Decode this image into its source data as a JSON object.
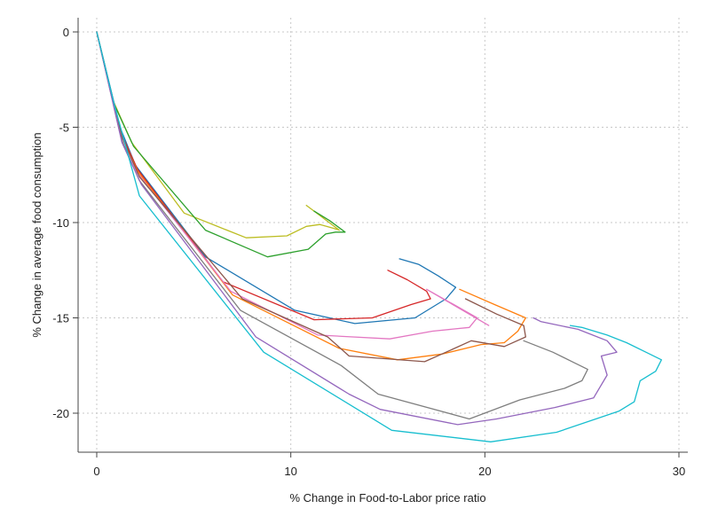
{
  "chart_data": {
    "type": "line",
    "title": "",
    "xlabel": "% Change in Food-to-Labor price ratio",
    "ylabel": "% Change in average food consumption",
    "xlim": [
      0,
      30
    ],
    "ylim": [
      -22,
      0
    ],
    "xticks": [
      0,
      10,
      20,
      30
    ],
    "yticks": [
      0,
      -5,
      -10,
      -15,
      -20
    ],
    "xtick_labels": [
      "0",
      "10",
      "20",
      "30"
    ],
    "ytick_labels": [
      "0",
      "-5",
      "-10",
      "-15",
      "-20"
    ],
    "grid": true,
    "legend": "none",
    "series": [
      {
        "color": "#bcbd22",
        "points": [
          [
            0,
            0
          ],
          [
            0.8,
            -3.5
          ],
          [
            1.8,
            -5.8
          ],
          [
            4.5,
            -9.5
          ],
          [
            7.7,
            -10.8
          ],
          [
            9.8,
            -10.7
          ],
          [
            10.8,
            -10.2
          ],
          [
            11.5,
            -10.1
          ],
          [
            12.2,
            -10.3
          ],
          [
            12.5,
            -10.4
          ],
          [
            11.2,
            -9.4
          ],
          [
            10.8,
            -9.1
          ]
        ]
      },
      {
        "color": "#2ca02c",
        "points": [
          [
            0,
            0
          ],
          [
            0.9,
            -3.8
          ],
          [
            1.9,
            -6.0
          ],
          [
            5.6,
            -10.4
          ],
          [
            8.8,
            -11.8
          ],
          [
            10.9,
            -11.4
          ],
          [
            11.8,
            -10.6
          ],
          [
            12.3,
            -10.5
          ],
          [
            12.8,
            -10.5
          ],
          [
            12.0,
            -9.9
          ],
          [
            11.2,
            -9.4
          ]
        ]
      },
      {
        "color": "#1f77b4",
        "points": [
          [
            0,
            0
          ],
          [
            1.2,
            -5.0
          ],
          [
            2.0,
            -7.0
          ],
          [
            5.6,
            -11.8
          ],
          [
            10.2,
            -14.6
          ],
          [
            13.3,
            -15.3
          ],
          [
            16.4,
            -15.0
          ],
          [
            18.0,
            -14.0
          ],
          [
            18.5,
            -13.4
          ],
          [
            17.6,
            -12.8
          ],
          [
            16.6,
            -12.2
          ],
          [
            15.6,
            -11.9
          ]
        ]
      },
      {
        "color": "#d62728",
        "points": [
          [
            0,
            0
          ],
          [
            1.2,
            -5.2
          ],
          [
            2.1,
            -7.2
          ],
          [
            6.5,
            -13.1
          ],
          [
            11.2,
            -15.1
          ],
          [
            14.2,
            -15.0
          ],
          [
            16.2,
            -14.3
          ],
          [
            17.2,
            -14.0
          ],
          [
            17.0,
            -13.6
          ],
          [
            16.0,
            -13.0
          ],
          [
            15.0,
            -12.5
          ]
        ]
      },
      {
        "color": "#ff7f0e",
        "points": [
          [
            0,
            0
          ],
          [
            1.2,
            -5.3
          ],
          [
            2.1,
            -7.3
          ],
          [
            7.0,
            -13.8
          ],
          [
            12.5,
            -16.6
          ],
          [
            15.5,
            -17.2
          ],
          [
            17.8,
            -16.9
          ],
          [
            19.8,
            -16.4
          ],
          [
            21.0,
            -16.3
          ],
          [
            21.7,
            -15.7
          ],
          [
            22.1,
            -15.0
          ],
          [
            20.5,
            -14.3
          ],
          [
            18.7,
            -13.5
          ]
        ]
      },
      {
        "color": "#e377c2",
        "points": [
          [
            0,
            0
          ],
          [
            1.2,
            -5.3
          ],
          [
            2.1,
            -7.4
          ],
          [
            6.9,
            -13.6
          ],
          [
            11.4,
            -15.9
          ],
          [
            15.1,
            -16.1
          ],
          [
            17.3,
            -15.7
          ],
          [
            19.2,
            -15.5
          ],
          [
            19.6,
            -15.0
          ],
          [
            18.4,
            -14.3
          ],
          [
            17.0,
            -13.5
          ],
          [
            20.2,
            -15.4
          ]
        ]
      },
      {
        "color": "#8c564b",
        "points": [
          [
            0,
            0
          ],
          [
            1.3,
            -5.5
          ],
          [
            2.2,
            -7.6
          ],
          [
            7.5,
            -14.0
          ],
          [
            11.9,
            -16.0
          ],
          [
            13.0,
            -17.0
          ],
          [
            16.9,
            -17.3
          ],
          [
            18.0,
            -16.8
          ],
          [
            19.3,
            -16.2
          ],
          [
            21.0,
            -16.5
          ],
          [
            22.1,
            -16.0
          ],
          [
            22.0,
            -15.4
          ],
          [
            20.6,
            -14.8
          ],
          [
            19.0,
            -14.0
          ]
        ]
      },
      {
        "color": "#7f7f7f",
        "points": [
          [
            0,
            0
          ],
          [
            1.3,
            -5.7
          ],
          [
            2.2,
            -7.8
          ],
          [
            7.4,
            -14.6
          ],
          [
            12.6,
            -17.5
          ],
          [
            14.5,
            -19.0
          ],
          [
            19.2,
            -20.3
          ],
          [
            21.8,
            -19.3
          ],
          [
            24.1,
            -18.7
          ],
          [
            25.0,
            -18.3
          ],
          [
            25.3,
            -17.7
          ],
          [
            24.5,
            -17.3
          ],
          [
            23.5,
            -16.8
          ],
          [
            22.0,
            -16.2
          ]
        ]
      },
      {
        "color": "#9467bd",
        "points": [
          [
            0,
            0
          ],
          [
            1.3,
            -5.8
          ],
          [
            2.3,
            -8.0
          ],
          [
            8.2,
            -16.0
          ],
          [
            13.0,
            -19.0
          ],
          [
            14.6,
            -19.8
          ],
          [
            18.6,
            -20.6
          ],
          [
            20.6,
            -20.3
          ],
          [
            23.6,
            -19.7
          ],
          [
            25.6,
            -19.2
          ],
          [
            26.3,
            -18.0
          ],
          [
            26.0,
            -17.0
          ],
          [
            26.8,
            -16.8
          ],
          [
            26.3,
            -16.2
          ],
          [
            24.8,
            -15.6
          ],
          [
            22.9,
            -15.2
          ],
          [
            22.5,
            -15.0
          ]
        ]
      },
      {
        "color": "#17becf",
        "points": [
          [
            0,
            0
          ],
          [
            0.9,
            -3.8
          ],
          [
            2.2,
            -8.6
          ],
          [
            8.6,
            -16.8
          ],
          [
            15.2,
            -20.9
          ],
          [
            20.3,
            -21.5
          ],
          [
            23.7,
            -21.0
          ],
          [
            26.9,
            -19.9
          ],
          [
            27.7,
            -19.4
          ],
          [
            28.0,
            -18.3
          ],
          [
            28.8,
            -17.8
          ],
          [
            29.1,
            -17.2
          ],
          [
            28.3,
            -16.8
          ],
          [
            27.3,
            -16.3
          ],
          [
            26.3,
            -15.9
          ],
          [
            25.0,
            -15.5
          ],
          [
            24.4,
            -15.4
          ]
        ]
      }
    ]
  }
}
